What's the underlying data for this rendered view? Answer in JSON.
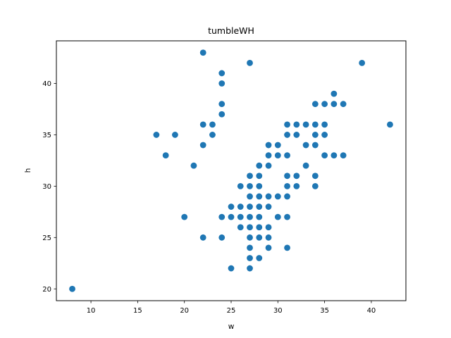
{
  "chart_data": {
    "type": "scatter",
    "title": "tumbleWH",
    "xlabel": "w",
    "ylabel": "h",
    "xlim": [
      6.3,
      43.7
    ],
    "ylim": [
      18.85,
      44.15
    ],
    "xticks": [
      10,
      15,
      20,
      25,
      30,
      35,
      40
    ],
    "yticks": [
      20,
      25,
      30,
      35,
      40
    ],
    "grid": false,
    "marker_color": "#1f77b4",
    "series": [
      {
        "name": "tumbleWH",
        "points": [
          [
            8,
            20
          ],
          [
            17,
            35
          ],
          [
            18,
            33
          ],
          [
            19,
            35
          ],
          [
            20,
            27
          ],
          [
            21,
            32
          ],
          [
            22,
            25
          ],
          [
            22,
            34
          ],
          [
            22,
            36
          ],
          [
            22,
            43
          ],
          [
            23,
            35
          ],
          [
            23,
            36
          ],
          [
            24,
            25
          ],
          [
            24,
            27
          ],
          [
            24,
            37
          ],
          [
            24,
            38
          ],
          [
            24,
            40
          ],
          [
            24,
            41
          ],
          [
            25,
            22
          ],
          [
            25,
            27
          ],
          [
            25,
            28
          ],
          [
            26,
            26
          ],
          [
            26,
            27
          ],
          [
            26,
            28
          ],
          [
            26,
            30
          ],
          [
            27,
            22
          ],
          [
            27,
            23
          ],
          [
            27,
            24
          ],
          [
            27,
            25
          ],
          [
            27,
            26
          ],
          [
            27,
            27
          ],
          [
            27,
            28
          ],
          [
            27,
            29
          ],
          [
            27,
            30
          ],
          [
            27,
            31
          ],
          [
            27,
            42
          ],
          [
            28,
            23
          ],
          [
            28,
            25
          ],
          [
            28,
            26
          ],
          [
            28,
            27
          ],
          [
            28,
            28
          ],
          [
            28,
            29
          ],
          [
            28,
            30
          ],
          [
            28,
            31
          ],
          [
            28,
            32
          ],
          [
            29,
            24
          ],
          [
            29,
            25
          ],
          [
            29,
            26
          ],
          [
            29,
            28
          ],
          [
            29,
            29
          ],
          [
            29,
            32
          ],
          [
            29,
            33
          ],
          [
            29,
            34
          ],
          [
            30,
            27
          ],
          [
            30,
            29
          ],
          [
            30,
            33
          ],
          [
            30,
            34
          ],
          [
            31,
            24
          ],
          [
            31,
            27
          ],
          [
            31,
            29
          ],
          [
            31,
            30
          ],
          [
            31,
            31
          ],
          [
            31,
            33
          ],
          [
            31,
            35
          ],
          [
            31,
            36
          ],
          [
            32,
            30
          ],
          [
            32,
            31
          ],
          [
            32,
            35
          ],
          [
            32,
            36
          ],
          [
            33,
            32
          ],
          [
            33,
            34
          ],
          [
            33,
            36
          ],
          [
            34,
            30
          ],
          [
            34,
            31
          ],
          [
            34,
            34
          ],
          [
            34,
            35
          ],
          [
            34,
            36
          ],
          [
            34,
            38
          ],
          [
            35,
            33
          ],
          [
            35,
            35
          ],
          [
            35,
            36
          ],
          [
            35,
            38
          ],
          [
            36,
            33
          ],
          [
            36,
            38
          ],
          [
            36,
            39
          ],
          [
            37,
            33
          ],
          [
            37,
            38
          ],
          [
            39,
            42
          ],
          [
            42,
            36
          ]
        ]
      }
    ]
  }
}
